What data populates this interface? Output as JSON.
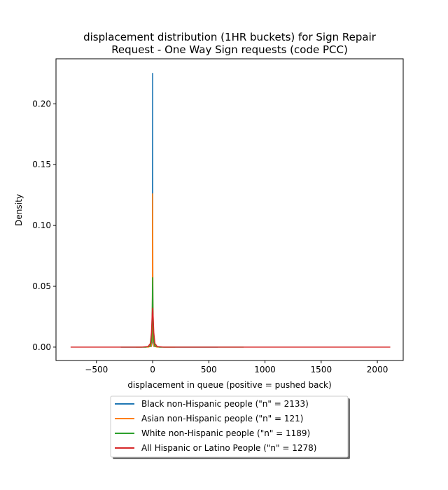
{
  "chart_data": {
    "type": "line",
    "title_lines": [
      "displacement distribution (1HR buckets) for Sign Repair",
      "Request - One Way Sign requests (code PCC)"
    ],
    "xlabel": "displacement in queue (positive = pushed back)",
    "ylabel": "Density",
    "xlim": [
      -860,
      2230
    ],
    "ylim": [
      -0.011,
      0.237
    ],
    "x_ticks": [
      -500,
      0,
      500,
      1000,
      1500,
      2000
    ],
    "x_tick_labels": [
      "−500",
      "0",
      "500",
      "1000",
      "1500",
      "2000"
    ],
    "y_ticks": [
      0.0,
      0.05,
      0.1,
      0.15,
      0.2
    ],
    "y_tick_labels": [
      "0.00",
      "0.05",
      "0.10",
      "0.15",
      "0.20"
    ],
    "grid": false,
    "legend_placement": "below plot, centered",
    "series": [
      {
        "name": "Black non-Hispanic people (\"n\" = 2133)",
        "color": "#1f77b4",
        "x": [
          -285,
          -60,
          -12,
          -4,
          -1.5,
          -0.3,
          0,
          0.3,
          1.5,
          4,
          12,
          60,
          350,
          580
        ],
        "y": [
          0,
          0,
          0.0005,
          0.004,
          0.04,
          0.18,
          0.225,
          0.18,
          0.04,
          0.004,
          0.0005,
          0,
          0,
          0
        ]
      },
      {
        "name": "Asian non-Hispanic people (\"n\" = 121)",
        "color": "#ff7f0e",
        "x": [
          -150,
          -40,
          -12,
          -5,
          -2,
          -0.5,
          0,
          0.5,
          2,
          5,
          12,
          40,
          200
        ],
        "y": [
          0,
          0,
          0.0008,
          0.006,
          0.04,
          0.11,
          0.126,
          0.11,
          0.04,
          0.006,
          0.0008,
          0,
          0
        ]
      },
      {
        "name": "White non-Hispanic people (\"n\" = 1189)",
        "color": "#2ca02c",
        "x": [
          -280,
          -60,
          -20,
          -8,
          -3,
          -1,
          0,
          1,
          3,
          8,
          20,
          60,
          500,
          810
        ],
        "y": [
          0,
          0,
          0.001,
          0.006,
          0.03,
          0.05,
          0.057,
          0.05,
          0.03,
          0.006,
          0.001,
          0,
          0,
          0
        ]
      },
      {
        "name": "All Hispanic or Latino People (\"n\" = 1278)",
        "color": "#d62728",
        "x": [
          -730,
          -100,
          -40,
          -20,
          -10,
          -4,
          0,
          4,
          10,
          20,
          40,
          100,
          1000,
          2115
        ],
        "y": [
          0,
          0,
          0.0005,
          0.003,
          0.012,
          0.026,
          0.032,
          0.026,
          0.012,
          0.003,
          0.0005,
          0,
          0,
          0
        ]
      }
    ]
  }
}
